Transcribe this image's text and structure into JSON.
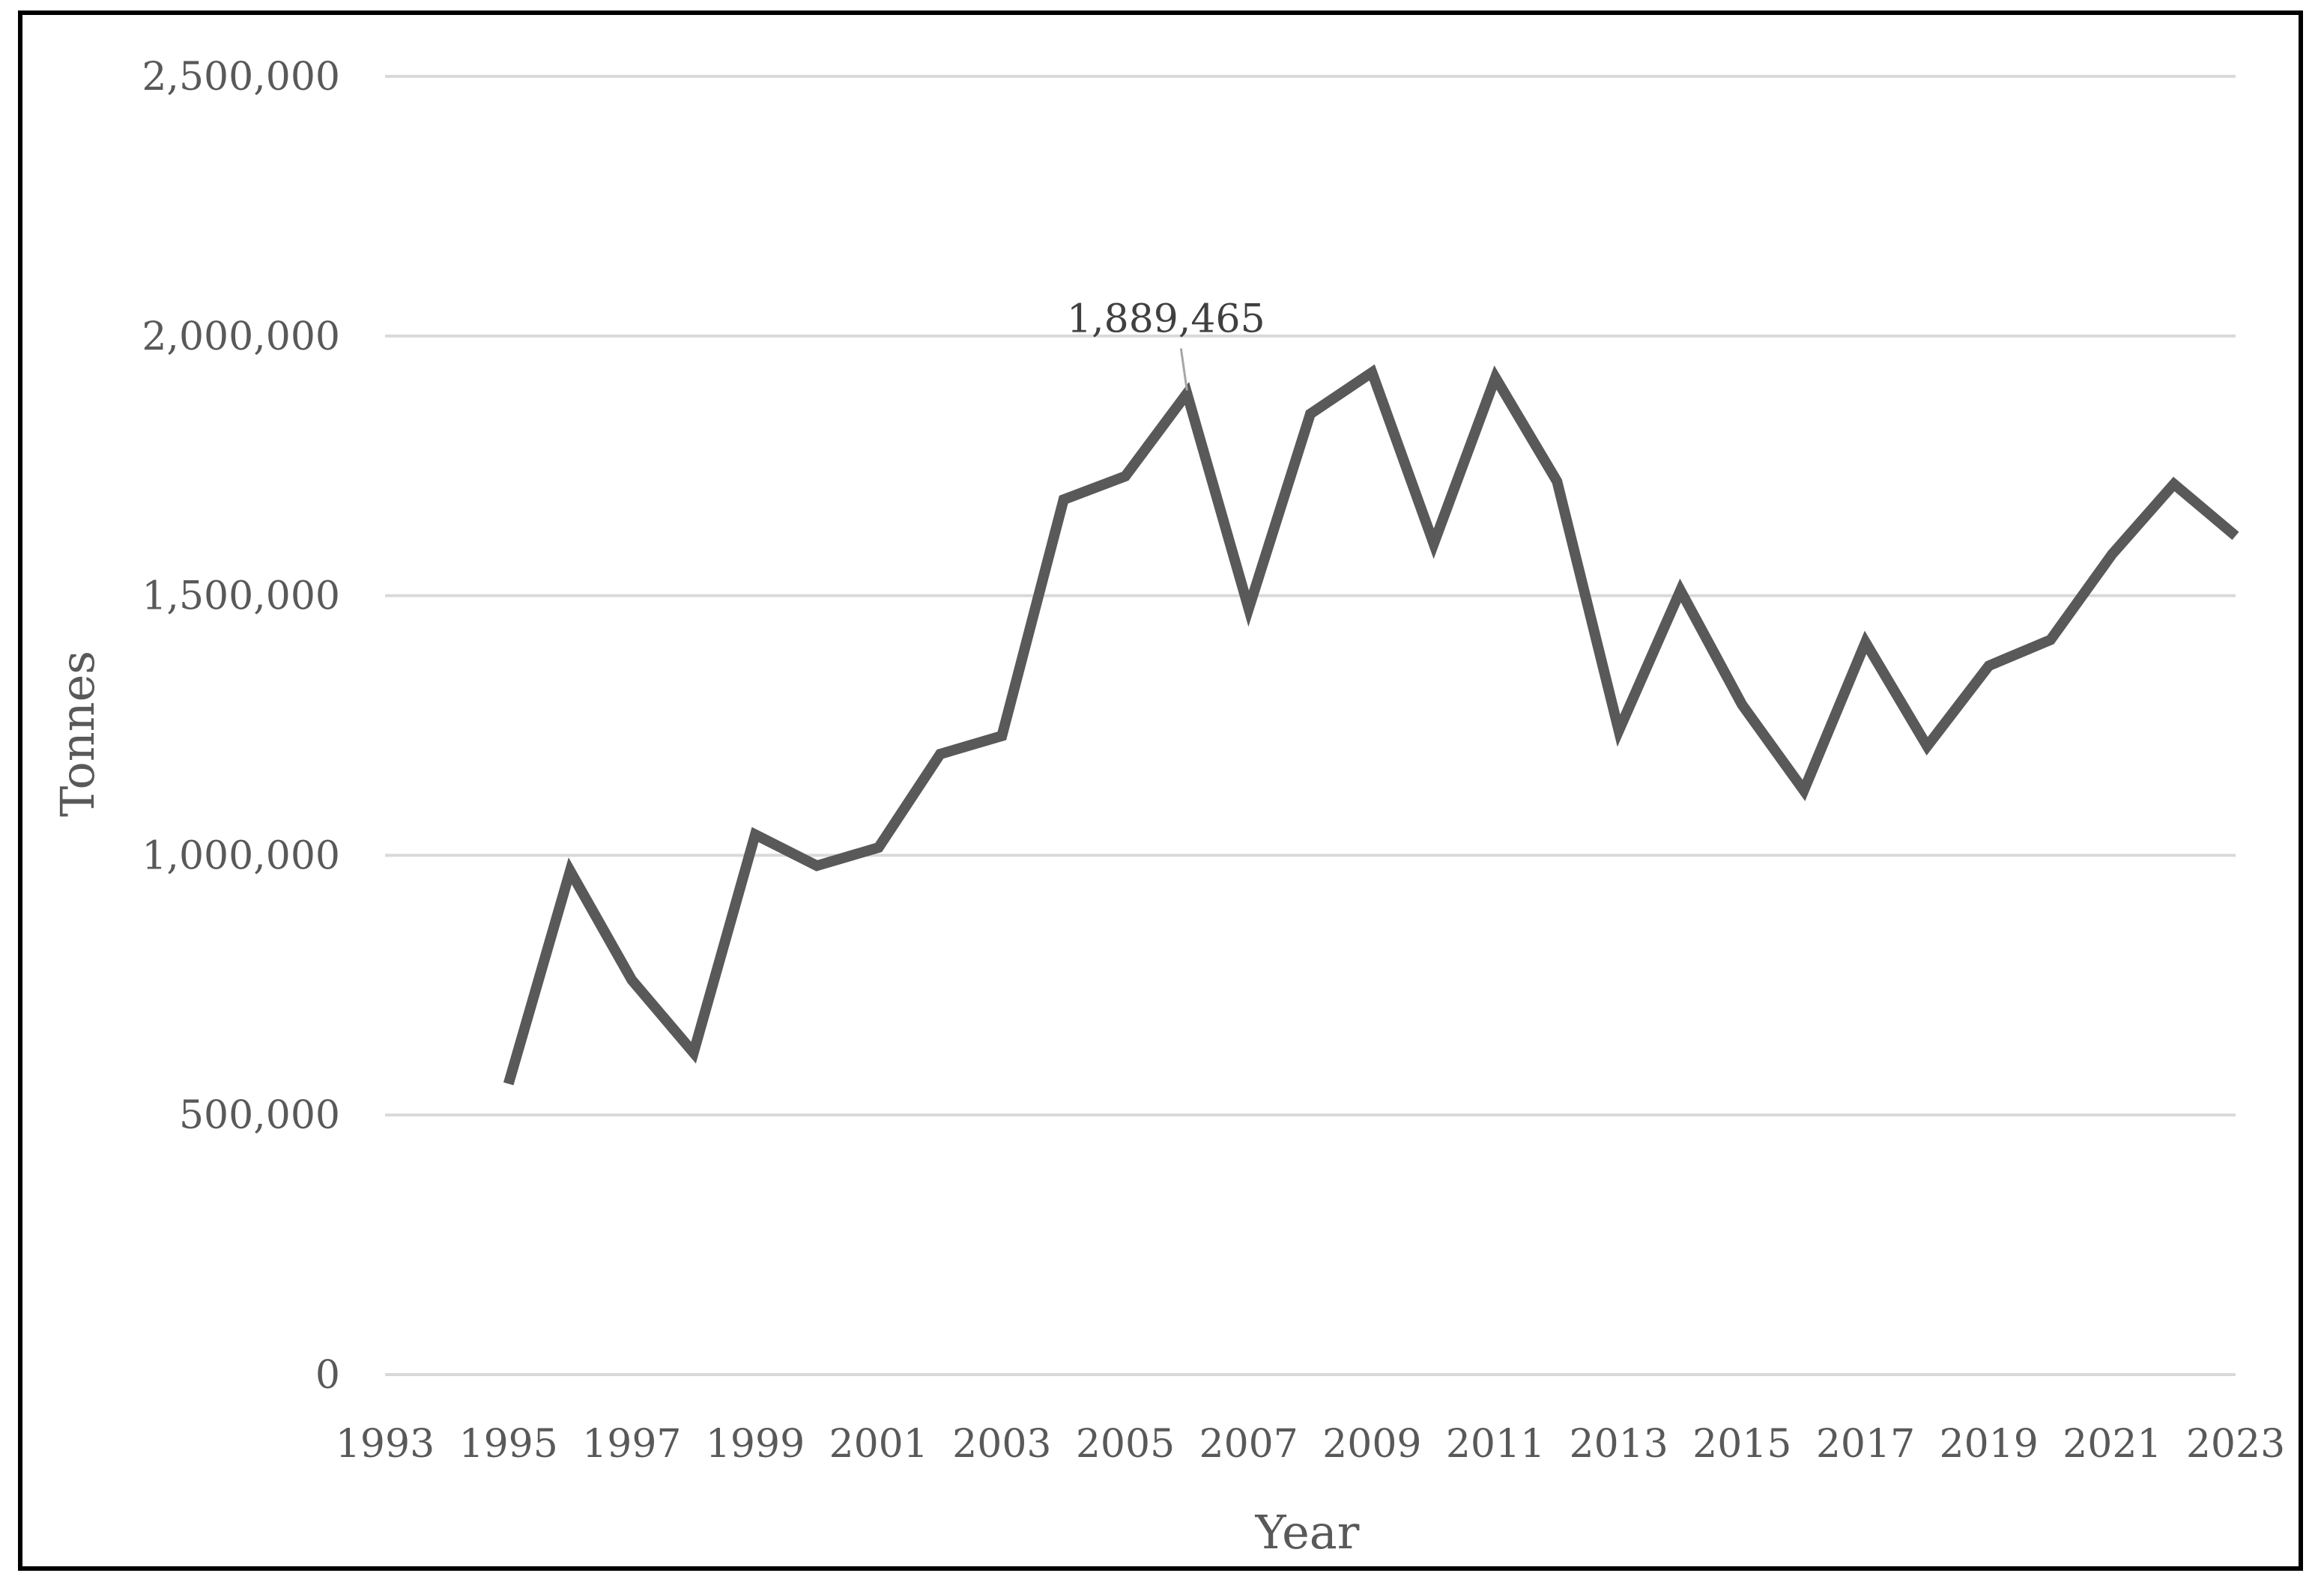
{
  "chart_data": {
    "type": "line",
    "title": "",
    "xlabel": "Year",
    "ylabel": "Tonnes",
    "xlim": [
      1993,
      2023
    ],
    "ylim": [
      0,
      2500000
    ],
    "x_ticks": [
      "1993",
      "1995",
      "1997",
      "1999",
      "2001",
      "2003",
      "2005",
      "2007",
      "2009",
      "2011",
      "2013",
      "2015",
      "2017",
      "2019",
      "2021",
      "2023"
    ],
    "y_ticks": [
      "0",
      "500,000",
      "1,000,000",
      "1,500,000",
      "2,000,000",
      "2,500,000"
    ],
    "y_tick_values": [
      0,
      500000,
      1000000,
      1500000,
      2000000,
      2500000
    ],
    "grid": true,
    "legend": "none",
    "series": [
      {
        "color": "#595959",
        "x": [
          1995,
          1996,
          1997,
          1998,
          1999,
          2000,
          2001,
          2002,
          2003,
          2004,
          2005,
          2006,
          2007,
          2008,
          2009,
          2010,
          2011,
          2012,
          2013,
          2014,
          2015,
          2016,
          2017,
          2018,
          2019,
          2020,
          2021,
          2022,
          2023
        ],
        "values": [
          560000,
          970000,
          760000,
          620000,
          1040000,
          980000,
          1015000,
          1195000,
          1230000,
          1685000,
          1730000,
          1889465,
          1475000,
          1850000,
          1930000,
          1600000,
          1920000,
          1720000,
          1240000,
          1510000,
          1290000,
          1125000,
          1410000,
          1210000,
          1365000,
          1415000,
          1580000,
          1715000,
          1615000
        ]
      }
    ],
    "annotations": [
      {
        "x": 2006,
        "y": 1889465,
        "text": "1,889,465"
      }
    ]
  }
}
